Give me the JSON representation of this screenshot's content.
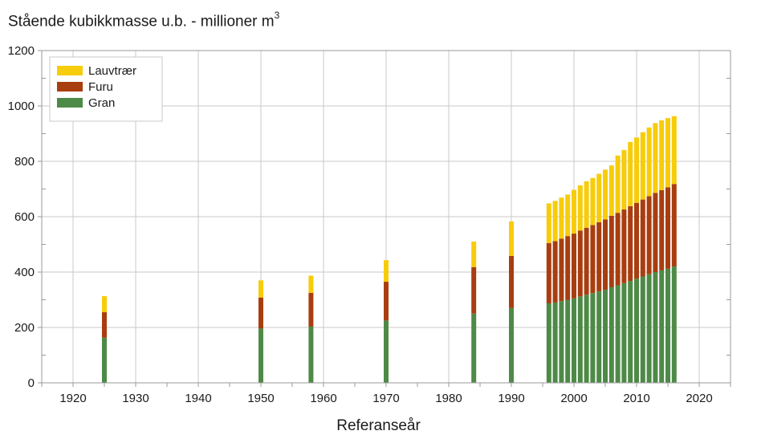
{
  "chart_data": {
    "type": "bar",
    "stacked": true,
    "title": "Stående kubikkmasse u.b. - millioner m",
    "title_superscript": "3",
    "xlabel": "Referanseår",
    "ylabel": "",
    "xlim": [
      1915,
      2025
    ],
    "ylim": [
      0,
      1200
    ],
    "xticks": [
      1920,
      1930,
      1940,
      1950,
      1960,
      1970,
      1980,
      1990,
      2000,
      2010,
      2020
    ],
    "yticks": [
      0,
      200,
      400,
      600,
      800,
      1000,
      1200
    ],
    "grid": true,
    "legend_position": "top-left",
    "x": [
      1925,
      1950,
      1958,
      1970,
      1984,
      1990,
      1996,
      1997,
      1998,
      1999,
      2000,
      2001,
      2002,
      2003,
      2004,
      2005,
      2006,
      2007,
      2008,
      2009,
      2010,
      2011,
      2012,
      2013,
      2014,
      2015,
      2016
    ],
    "series": [
      {
        "name": "Gran",
        "color": "#4e8a47",
        "values": [
          163,
          196,
          203,
          225,
          250,
          270,
          287,
          290,
          295,
          300,
          305,
          312,
          318,
          324,
          330,
          336,
          345,
          352,
          360,
          368,
          376,
          384,
          392,
          400,
          406,
          412,
          420
        ]
      },
      {
        "name": "Furu",
        "color": "#a83e10",
        "values": [
          92,
          112,
          122,
          140,
          168,
          188,
          218,
          222,
          226,
          230,
          234,
          238,
          242,
          246,
          250,
          254,
          258,
          262,
          266,
          270,
          274,
          278,
          282,
          286,
          290,
          294,
          298
        ]
      },
      {
        "name": "Lauvtrær",
        "color": "#f7cc0a",
        "values": [
          58,
          62,
          62,
          78,
          92,
          125,
          143,
          145,
          148,
          150,
          158,
          163,
          168,
          170,
          175,
          180,
          182,
          207,
          215,
          232,
          236,
          243,
          248,
          252,
          252,
          250,
          245
        ]
      }
    ]
  }
}
